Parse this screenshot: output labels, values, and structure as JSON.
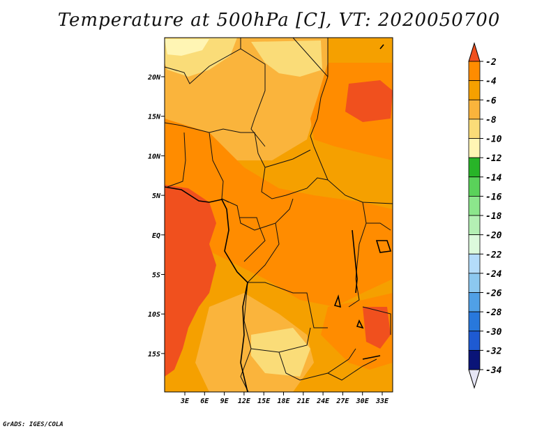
{
  "title": "Temperature at 500hPa [C], VT: 2020050700",
  "credit": "GrADS: IGES/COLA",
  "map": {
    "lat_labels": [
      "20N",
      "15N",
      "10N",
      "5N",
      "EQ",
      "5S",
      "10S",
      "15S"
    ],
    "lon_labels": [
      "3E",
      "6E",
      "9E",
      "12E",
      "15E",
      "18E",
      "21E",
      "24E",
      "27E",
      "30E",
      "33E"
    ]
  },
  "colorbar": {
    "labels": [
      "-2",
      "-4",
      "-6",
      "-8",
      "-10",
      "-12",
      "-14",
      "-16",
      "-18",
      "-20",
      "-22",
      "-24",
      "-26",
      "-28",
      "-30",
      "-32",
      "-34"
    ],
    "colors": [
      "#f0501e",
      "#ff8c00",
      "#f5a000",
      "#fab43c",
      "#fadc78",
      "#fff5b4",
      "#28b428",
      "#5ad25a",
      "#8ce68c",
      "#b4f0b4",
      "#dcfadc",
      "#b4dcfa",
      "#8cc8f0",
      "#50a0e6",
      "#2878dc",
      "#1e5ad2",
      "#0a1478",
      "#e6e6f5"
    ]
  },
  "colors": {
    "warm_max": "#f0501e",
    "warm": "#ff8c00",
    "mid": "#f5a000",
    "light": "#fab43c",
    "pale": "#fadc78",
    "palest": "#fff5b4"
  }
}
